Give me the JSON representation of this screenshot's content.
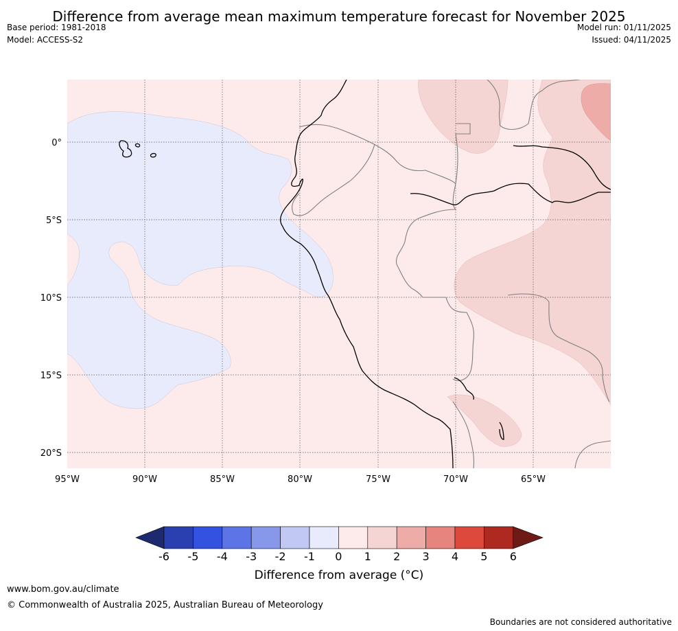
{
  "title": "Difference from average mean maximum temperature forecast for November 2025",
  "meta_left": {
    "base_period": "Base period: 1981-2018",
    "model": "Model: ACCESS-S2"
  },
  "meta_right": {
    "model_run": "Model run: 01/11/2025",
    "issued": "Issued: 04/11/2025"
  },
  "map": {
    "x_ticks": [
      "95°W",
      "90°W",
      "85°W",
      "80°W",
      "75°W",
      "70°W",
      "65°W"
    ],
    "y_ticks": [
      "0°",
      "5°S",
      "10°S",
      "15°S",
      "20°S"
    ],
    "lon_range": [
      -95,
      -60
    ],
    "lat_range": [
      -21,
      4
    ]
  },
  "colorbar": {
    "label": "Difference from average (°C)",
    "ticks": [
      "-6",
      "-5",
      "-4",
      "-3",
      "-2",
      "-1",
      "0",
      "1",
      "2",
      "3",
      "4",
      "5",
      "6"
    ],
    "colors": {
      "under": "#1e2a70",
      "bins": [
        "#2a3fb0",
        "#3452e0",
        "#5c74e6",
        "#8797ea",
        "#c2c8f4",
        "#e8ebfb",
        "#fcebea",
        "#f5d5d3",
        "#edaca8",
        "#e5857e",
        "#dd4a3c",
        "#ae2a20"
      ],
      "over": "#6e1a16"
    }
  },
  "footer": {
    "url": "www.bom.gov.au/climate",
    "copyright": "© Commonwealth of Australia 2025, Australian Bureau of Meteorology",
    "disclaimer": "Boundaries are not considered authoritative"
  }
}
